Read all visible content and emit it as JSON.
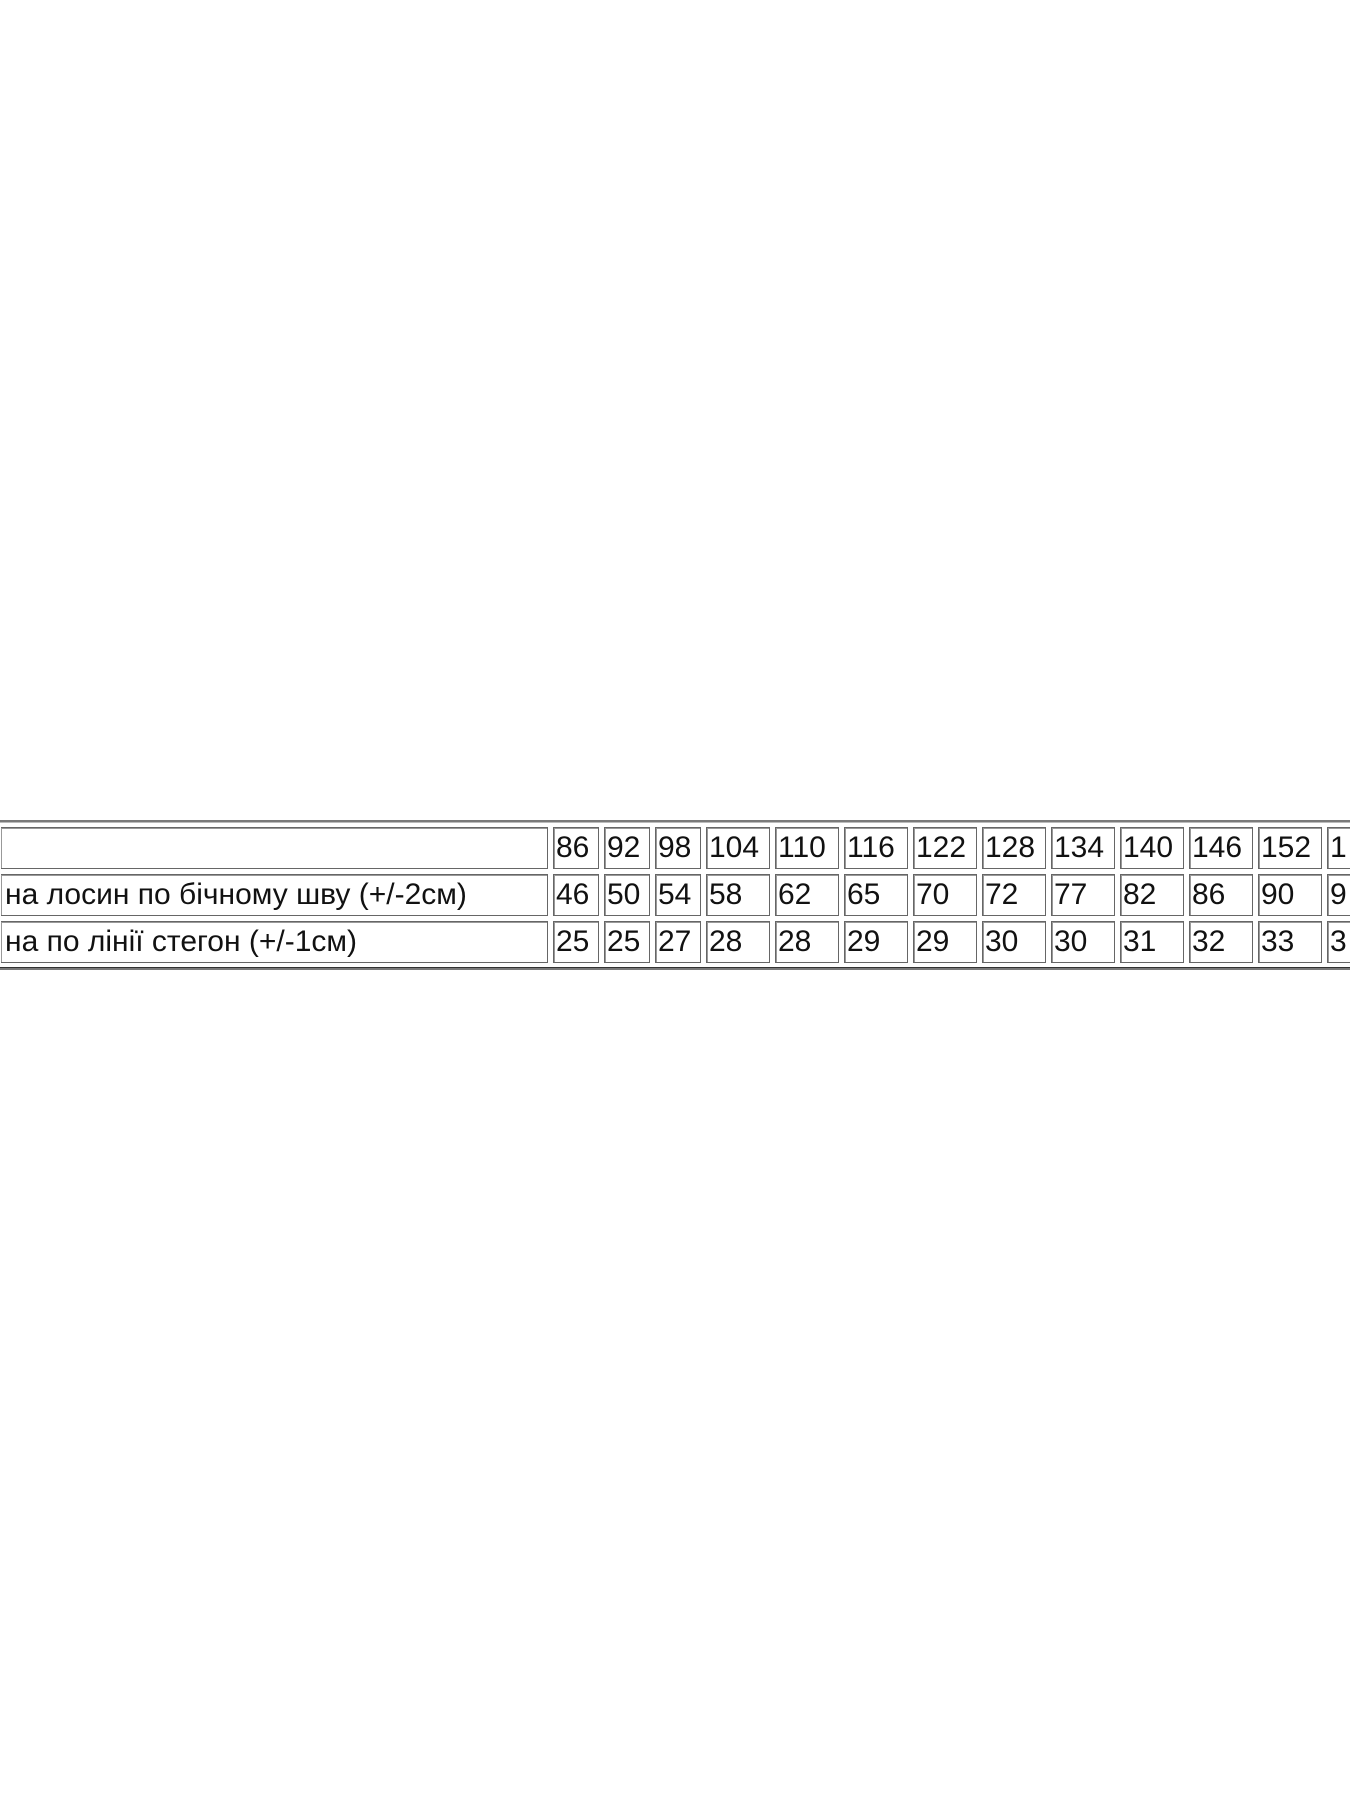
{
  "table": {
    "header": {
      "label": "",
      "sizes": [
        "86",
        "92",
        "98",
        "104",
        "110",
        "116",
        "122",
        "128",
        "134",
        "140",
        "146",
        "152",
        "1"
      ]
    },
    "rows": [
      {
        "label": "на лосин по бічному шву (+/-2см)",
        "values": [
          "46",
          "50",
          "54",
          "58",
          "62",
          "65",
          "70",
          "72",
          "77",
          "82",
          "86",
          "90",
          "9"
        ]
      },
      {
        "label": "на по лінії стегон (+/-1см)",
        "values": [
          "25",
          "25",
          "27",
          "28",
          "28",
          "29",
          "29",
          "30",
          "30",
          "31",
          "32",
          "33",
          "3"
        ]
      }
    ]
  }
}
